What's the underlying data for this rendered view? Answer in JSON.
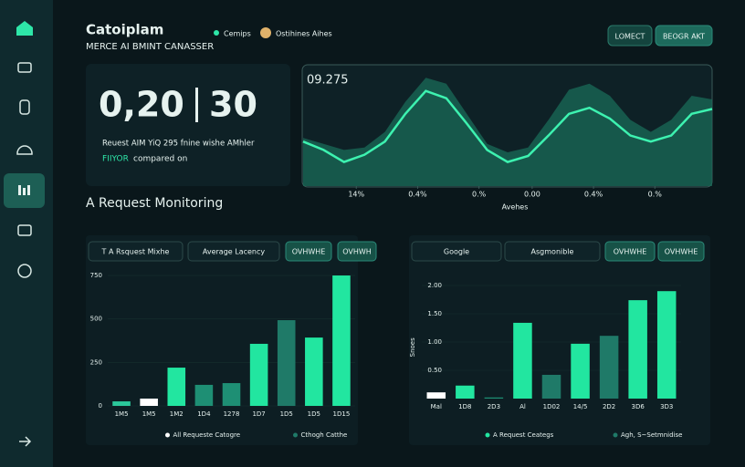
{
  "header": {
    "title": "Catoiplam",
    "subtitle": "MERCE AI BMINT CANASSER",
    "legend": [
      "Cemips",
      "Ostihines Aihes"
    ],
    "buttons": [
      "LOMECT",
      "BEOGR AKT"
    ]
  },
  "kpi": {
    "value_left": "0,20",
    "value_right": "30",
    "note": "Reuest AIM YiQ 295 fnine wishe AMhler",
    "highlight": "FIIYOR",
    "note2": "compared on"
  },
  "section_title": "A Request Monitoring",
  "panels": [
    {
      "tabs": [
        "T A Rsquest Mixhe",
        "Average Lacency",
        "OVHWHE",
        "OVHWH"
      ]
    },
    {
      "tabs": [
        "Google",
        "Asgmonible",
        "OVHWHE",
        "OVHWHE"
      ]
    }
  ],
  "chart_data": [
    {
      "type": "area",
      "title": "09.275",
      "xlabel": "Avehes",
      "x": [
        0,
        5,
        10,
        15,
        20,
        25,
        30,
        35,
        40,
        45,
        50,
        55,
        60,
        65,
        70,
        75,
        80,
        85,
        90,
        95,
        100
      ],
      "xlim": [
        0,
        100
      ],
      "ylim": [
        0,
        100
      ],
      "xticks": [
        {
          "value": 13,
          "label": "14%"
        },
        {
          "value": 28,
          "label": "0.4%"
        },
        {
          "value": 43,
          "label": "0.%"
        },
        {
          "value": 56,
          "label": "0.00"
        },
        {
          "value": 71,
          "label": "0.4%"
        },
        {
          "value": 86,
          "label": "0.%"
        }
      ],
      "series": [
        {
          "color": "#3df2b0",
          "values": [
            37,
            30,
            20,
            26,
            37,
            60,
            79,
            73,
            52,
            30,
            20,
            25,
            42,
            60,
            65,
            56,
            42,
            37,
            42,
            60,
            64
          ]
        },
        {
          "color": "#1a6b58",
          "values": [
            40,
            35,
            30,
            32,
            45,
            70,
            90,
            85,
            60,
            35,
            28,
            32,
            55,
            80,
            85,
            75,
            55,
            45,
            55,
            75,
            72
          ]
        }
      ]
    },
    {
      "type": "bar",
      "categories": [
        "1M5",
        "1M5",
        "1M2",
        "1D4",
        "1278",
        "1D7",
        "1D5",
        "1D5",
        "1D15"
      ],
      "values": [
        26,
        42,
        220,
        121,
        131,
        357,
        493,
        393,
        750
      ],
      "colors": [
        "#2bc79a",
        "#ffffff",
        "#22e6a0",
        "#1e8f74",
        "#1e8f74",
        "#22e6a0",
        "#1f7a68",
        "#22e6a0",
        "#22e6a0"
      ],
      "ylim": [
        0,
        800
      ],
      "yticks": [
        0,
        250,
        500,
        750
      ],
      "grid": true,
      "legend": [
        {
          "name": "All Requeste Catogre",
          "color": "#ffffff"
        },
        {
          "name": "Cthogh Catthe",
          "color": "#1f7a68"
        }
      ]
    },
    {
      "type": "bar",
      "ylabel": "Snoes",
      "categories": [
        "Mal",
        "1D8",
        "2D3",
        "Al",
        "1D02",
        "14/5",
        "2D2",
        "3D6",
        "3D3"
      ],
      "values": [
        0.11,
        0.23,
        0.02,
        1.34,
        0.42,
        0.97,
        1.11,
        1.74,
        1.9
      ],
      "colors": [
        "#ffffff",
        "#22e6a0",
        "#1e8f74",
        "#22e6a0",
        "#1f7a68",
        "#22e6a0",
        "#1f7a68",
        "#22e6a0",
        "#22e6a0"
      ],
      "ylim": [
        0,
        2.2
      ],
      "yticks": [
        {
          "value": 0.5,
          "label": "0.50"
        },
        {
          "value": 1,
          "label": "1.00"
        },
        {
          "value": 1.5,
          "label": "1.50"
        },
        {
          "value": 2,
          "label": "2.00"
        }
      ],
      "grid": true,
      "legend": [
        {
          "name": "A Request Ceategs",
          "color": "#22e6a0"
        },
        {
          "name": "Agh, S~Setmnidise",
          "color": "#1f7a68"
        }
      ]
    }
  ]
}
